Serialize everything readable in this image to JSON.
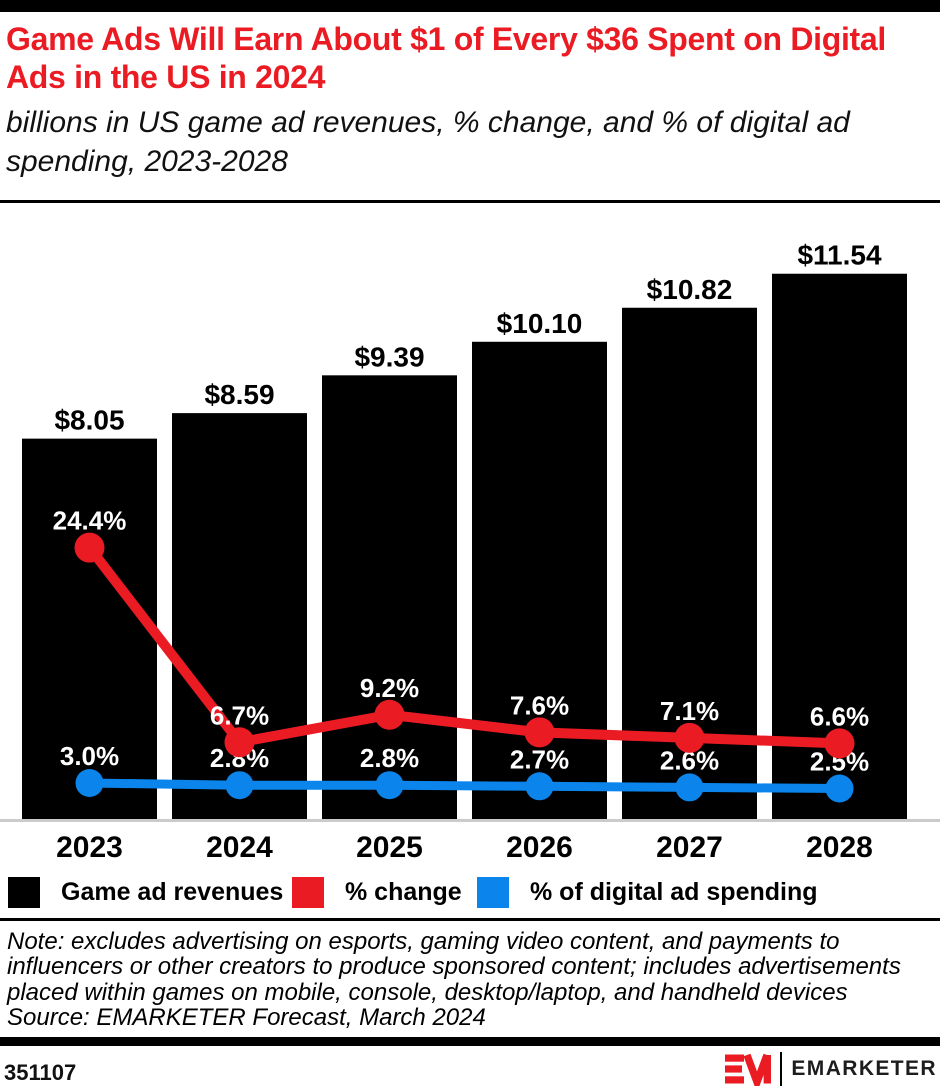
{
  "colors": {
    "accent_red": "#EB1B23",
    "line_blue": "#0B85EC",
    "bar_black": "#000000",
    "axis_gray": "#CBCBCB"
  },
  "header": {
    "title": "Game Ads Will Earn About $1 of Every $36 Spent on Digital Ads in the US in 2024",
    "subtitle": "billions in US game ad revenues, % change, and % of digital ad spending, 2023-2028"
  },
  "chart_data": {
    "type": "bar+line",
    "title": "Game Ads Will Earn About $1 of Every $36 Spent on Digital Ads in the US in 2024",
    "subtitle": "billions in US game ad revenues, % change, and % of digital ad spending, 2023-2028",
    "categories": [
      "2023",
      "2024",
      "2025",
      "2026",
      "2027",
      "2028"
    ],
    "series": [
      {
        "name": "Game ad revenues",
        "type": "bar",
        "unit": "billions of US dollars",
        "color": "#000000",
        "values": [
          8.05,
          8.59,
          9.39,
          10.1,
          10.82,
          11.54
        ],
        "labels": [
          "$8.05",
          "$8.59",
          "$9.39",
          "$10.10",
          "$10.82",
          "$11.54"
        ]
      },
      {
        "name": "% change",
        "type": "line",
        "unit": "percent",
        "color": "#EB1B23",
        "values": [
          24.4,
          6.7,
          9.2,
          7.6,
          7.1,
          6.6
        ],
        "labels": [
          "24.4%",
          "6.7%",
          "9.2%",
          "7.6%",
          "7.1%",
          "6.6%"
        ]
      },
      {
        "name": "% of digital ad spending",
        "type": "line",
        "unit": "percent",
        "color": "#0B85EC",
        "values": [
          3.0,
          2.8,
          2.8,
          2.7,
          2.6,
          2.5
        ],
        "labels": [
          "3.0%",
          "2.8%",
          "2.8%",
          "2.7%",
          "2.6%",
          "2.5%"
        ]
      }
    ],
    "bar_axis_range": [
      0,
      13
    ],
    "grid": false,
    "legend_position": "bottom",
    "data_labels": true
  },
  "legend": {
    "items": [
      {
        "label": "Game ad revenues",
        "color": "#000000"
      },
      {
        "label": "% change",
        "color": "#EB1B23"
      },
      {
        "label": "% of digital ad spending",
        "color": "#0B85EC"
      }
    ]
  },
  "note": {
    "lines": [
      "Note: excludes advertising on esports, gaming video content, and payments to",
      "influencers or other creators to produce sponsored content; includes advertisements",
      "placed within games on mobile, console, desktop/laptop, and handheld devices"
    ],
    "source": "Source: EMARKETER Forecast, March 2024"
  },
  "footer": {
    "chart_id": "351107",
    "brand": "EMARKETER"
  }
}
